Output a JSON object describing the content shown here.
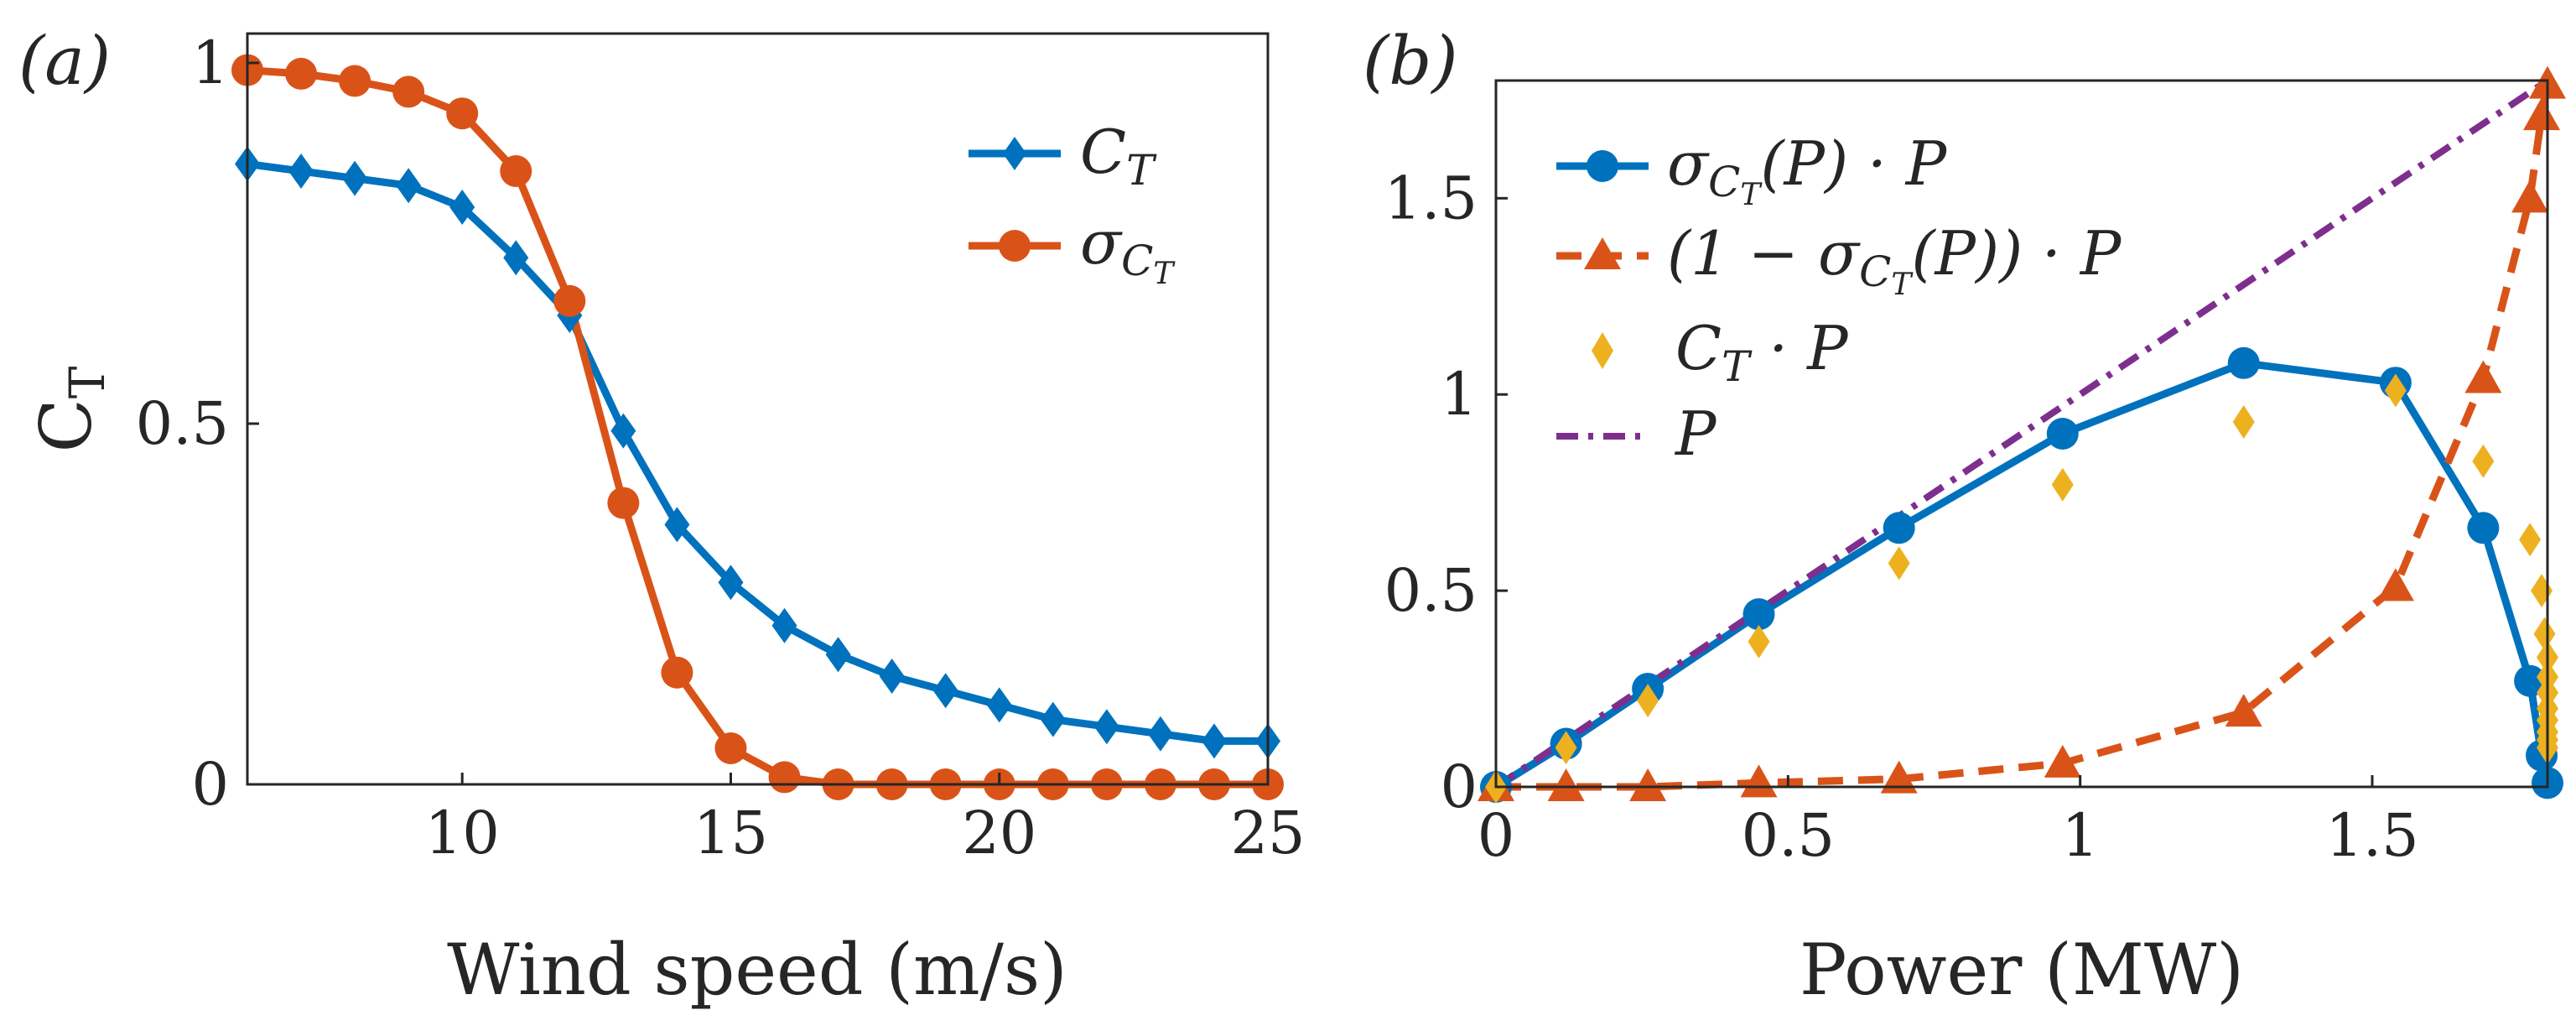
{
  "chart_data": [
    {
      "type": "line",
      "panel_label": "(a)",
      "xlabel": "Wind speed (m/s)",
      "ylabel": "C_T",
      "ylabel_main": "C",
      "ylabel_sub": "T",
      "xlim": [
        6,
        25
      ],
      "ylim": [
        0,
        1
      ],
      "xticks": [
        10,
        15,
        20,
        25
      ],
      "xtick_labels": [
        "10",
        "15",
        "20",
        "25"
      ],
      "yticks": [
        0,
        0.5,
        1
      ],
      "ytick_labels": [
        "0",
        "0.5",
        "1"
      ],
      "grid": false,
      "legend_position": "top-right",
      "series": [
        {
          "name": "C_T",
          "legend_main": "C",
          "legend_sub": "T",
          "color": "#0072BD",
          "marker": "diamond",
          "line": "solid",
          "x": [
            6,
            7,
            8,
            9,
            10,
            11,
            12,
            13,
            14,
            15,
            16,
            17,
            18,
            19,
            20,
            21,
            22,
            23,
            24,
            25
          ],
          "values": [
            0.86,
            0.85,
            0.84,
            0.83,
            0.8,
            0.73,
            0.65,
            0.49,
            0.36,
            0.28,
            0.22,
            0.18,
            0.15,
            0.13,
            0.11,
            0.09,
            0.08,
            0.07,
            0.06,
            0.06
          ]
        },
        {
          "name": "σ_{C_T}",
          "legend_main": "σ",
          "legend_sub": "C",
          "legend_subsub": "T",
          "color": "#D95319",
          "marker": "circle",
          "line": "solid",
          "x": [
            6,
            7,
            8,
            9,
            10,
            11,
            12,
            13,
            14,
            15,
            16,
            17,
            18,
            19,
            20,
            21,
            22,
            23,
            24,
            25
          ],
          "values": [
            0.99,
            0.985,
            0.975,
            0.96,
            0.93,
            0.85,
            0.67,
            0.39,
            0.155,
            0.05,
            0.01,
            0,
            0,
            0,
            0,
            0,
            0,
            0,
            0,
            0
          ]
        }
      ]
    },
    {
      "type": "line",
      "panel_label": "(b)",
      "xlabel": "Power (MW)",
      "ylabel": "",
      "xlim": [
        0,
        1.8
      ],
      "ylim": [
        0,
        1.8
      ],
      "xticks": [
        0,
        0.5,
        1,
        1.5
      ],
      "xtick_labels": [
        "0",
        "0.5",
        "1",
        "1.5"
      ],
      "yticks": [
        0,
        0.5,
        1,
        1.5
      ],
      "ytick_labels": [
        "0",
        "0.5",
        "1",
        "1.5"
      ],
      "grid": false,
      "legend_position": "top-left",
      "series": [
        {
          "name": "σ_{C_T}(P) · P",
          "legend_parts": [
            "σ",
            "C",
            "T",
            "(P) · P"
          ],
          "color": "#0072BD",
          "marker": "circle",
          "line": "solid",
          "x": [
            0,
            0.12,
            0.26,
            0.45,
            0.69,
            0.97,
            1.28,
            1.54,
            1.69,
            1.77,
            1.79,
            1.8
          ],
          "values": [
            0,
            0.11,
            0.25,
            0.44,
            0.66,
            0.9,
            1.08,
            1.03,
            0.66,
            0.27,
            0.08,
            0.01
          ]
        },
        {
          "name": "(1 − σ_{C_T}(P)) · P",
          "legend_parts": [
            "(1 − σ",
            "C",
            "T",
            "(P)) · P"
          ],
          "color": "#D95319",
          "marker": "triangle",
          "line": "dashed",
          "x": [
            0,
            0.12,
            0.26,
            0.45,
            0.69,
            0.97,
            1.28,
            1.54,
            1.69,
            1.77,
            1.79,
            1.8
          ],
          "values": [
            0,
            0,
            0,
            0.01,
            0.02,
            0.06,
            0.19,
            0.51,
            1.04,
            1.5,
            1.71,
            1.79
          ]
        },
        {
          "name": "C_T · P",
          "legend_parts": [
            "C",
            "T",
            " · P"
          ],
          "color": "#EDB120",
          "marker": "diamond",
          "line": "none",
          "x": [
            0,
            0.12,
            0.26,
            0.45,
            0.69,
            0.97,
            1.28,
            1.54,
            1.69,
            1.77,
            1.79,
            1.795,
            1.8,
            1.8,
            1.8,
            1.8,
            1.8,
            1.8,
            1.8,
            1.8
          ],
          "values": [
            0,
            0.1,
            0.22,
            0.37,
            0.57,
            0.77,
            0.93,
            1.01,
            0.83,
            0.63,
            0.5,
            0.39,
            0.33,
            0.28,
            0.24,
            0.2,
            0.17,
            0.14,
            0.12,
            0.1
          ]
        },
        {
          "name": "P",
          "legend_parts": [
            "P"
          ],
          "color": "#7E2F8E",
          "marker": "none",
          "line": "dashdot",
          "x": [
            0,
            1.8
          ],
          "values": [
            0,
            1.8
          ]
        }
      ]
    }
  ]
}
